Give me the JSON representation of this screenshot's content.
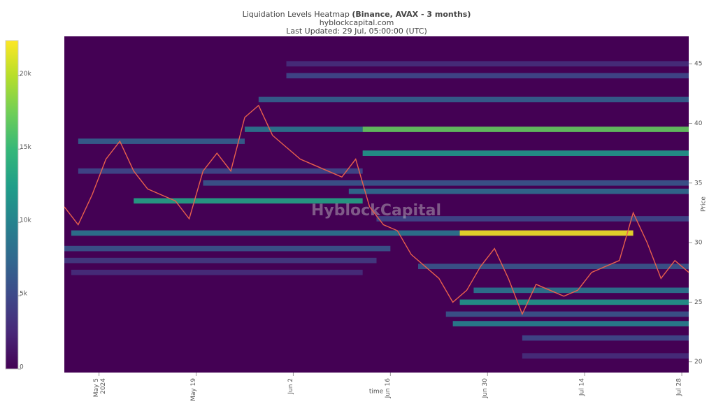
{
  "chart_data": {
    "type": "heatmap",
    "title": "Liquidation Levels Heatmap ",
    "title_bold": "(Binance, AVAX - 3 months)",
    "subtitle": "hyblockcapital.com",
    "updated": "Last Updated: 29 Jul, 05:00:00 (UTC)",
    "watermark": "HyblockCapital",
    "x_label": "time",
    "y_label": "Price",
    "colorscale": "viridis",
    "clim": [
      0,
      22400
    ],
    "cticks": [
      0,
      {
        "value": 5000,
        "label": "5k"
      },
      {
        "value": 10000,
        "label": "10k"
      },
      {
        "value": 15000,
        "label": "15k"
      },
      {
        "value": 20000,
        "label": "20k"
      }
    ],
    "xlim": [
      "2024-04-30",
      "2024-07-29"
    ],
    "xticks": [
      {
        "value": "2024-05-05",
        "label": "May 5"
      },
      {
        "value": "2024-05-19",
        "label": "May 19"
      },
      {
        "value": "2024-06-02",
        "label": "Jun 2"
      },
      {
        "value": "2024-06-16",
        "label": "Jun 16"
      },
      {
        "value": "2024-06-30",
        "label": "Jun 30"
      },
      {
        "value": "2024-07-14",
        "label": "Jul 14"
      },
      {
        "value": "2024-07-28",
        "label": "Jul 28"
      }
    ],
    "year_label": "2024",
    "ylim": [
      19.1,
      47.3
    ],
    "yticks": [
      20,
      25,
      30,
      35,
      40,
      45
    ],
    "line_color": "#e8604c",
    "x": [
      "2024-04-30",
      "2024-05-02",
      "2024-05-04",
      "2024-05-06",
      "2024-05-08",
      "2024-05-10",
      "2024-05-12",
      "2024-05-14",
      "2024-05-16",
      "2024-05-18",
      "2024-05-20",
      "2024-05-22",
      "2024-05-24",
      "2024-05-26",
      "2024-05-28",
      "2024-05-30",
      "2024-06-01",
      "2024-06-03",
      "2024-06-05",
      "2024-06-07",
      "2024-06-09",
      "2024-06-11",
      "2024-06-13",
      "2024-06-15",
      "2024-06-17",
      "2024-06-19",
      "2024-06-21",
      "2024-06-23",
      "2024-06-25",
      "2024-06-27",
      "2024-06-29",
      "2024-07-01",
      "2024-07-03",
      "2024-07-05",
      "2024-07-07",
      "2024-07-09",
      "2024-07-11",
      "2024-07-13",
      "2024-07-15",
      "2024-07-17",
      "2024-07-19",
      "2024-07-21",
      "2024-07-23",
      "2024-07-25",
      "2024-07-27",
      "2024-07-29"
    ],
    "values": [
      33,
      31.5,
      34,
      37,
      38.5,
      36,
      34.5,
      34,
      33.5,
      32,
      36,
      37.5,
      36,
      40.5,
      41.5,
      39,
      38,
      37,
      36.5,
      36,
      35.5,
      37,
      33,
      31.5,
      31,
      29,
      28,
      27,
      25,
      26,
      28,
      29.5,
      27,
      24,
      26.5,
      26,
      25.5,
      26,
      27.5,
      28,
      28.5,
      32.5,
      30,
      27,
      28.5,
      27.5
    ],
    "bands": [
      {
        "price": 39.5,
        "start": "2024-05-26",
        "end": "2024-06-12",
        "value": 9000
      },
      {
        "price": 39.5,
        "start": "2024-06-12",
        "end": "2024-07-29",
        "value": 17000
      },
      {
        "price": 30.8,
        "start": "2024-05-01",
        "end": "2024-06-26",
        "value": 9000
      },
      {
        "price": 30.8,
        "start": "2024-06-26",
        "end": "2024-07-21",
        "value": 22000
      },
      {
        "price": 33.5,
        "start": "2024-05-10",
        "end": "2024-06-12",
        "value": 13000
      },
      {
        "price": 37.5,
        "start": "2024-06-12",
        "end": "2024-07-29",
        "value": 12000
      },
      {
        "price": 42,
        "start": "2024-05-28",
        "end": "2024-07-29",
        "value": 7000
      },
      {
        "price": 44,
        "start": "2024-06-01",
        "end": "2024-07-29",
        "value": 5000
      },
      {
        "price": 45,
        "start": "2024-06-01",
        "end": "2024-07-29",
        "value": 3000
      },
      {
        "price": 35,
        "start": "2024-05-20",
        "end": "2024-07-29",
        "value": 6000
      },
      {
        "price": 34.3,
        "start": "2024-06-10",
        "end": "2024-07-29",
        "value": 8000
      },
      {
        "price": 29.5,
        "start": "2024-04-30",
        "end": "2024-06-16",
        "value": 6000
      },
      {
        "price": 28.5,
        "start": "2024-04-30",
        "end": "2024-06-14",
        "value": 4000
      },
      {
        "price": 27.5,
        "start": "2024-05-01",
        "end": "2024-06-12",
        "value": 3000
      },
      {
        "price": 26,
        "start": "2024-06-28",
        "end": "2024-07-29",
        "value": 9000
      },
      {
        "price": 25,
        "start": "2024-06-26",
        "end": "2024-07-29",
        "value": 12000
      },
      {
        "price": 23.2,
        "start": "2024-06-25",
        "end": "2024-07-29",
        "value": 10000
      },
      {
        "price": 22,
        "start": "2024-07-05",
        "end": "2024-07-29",
        "value": 5000
      },
      {
        "price": 20.5,
        "start": "2024-07-05",
        "end": "2024-07-29",
        "value": 3000
      },
      {
        "price": 38.5,
        "start": "2024-05-02",
        "end": "2024-05-26",
        "value": 7000
      },
      {
        "price": 36,
        "start": "2024-05-02",
        "end": "2024-06-12",
        "value": 5000
      },
      {
        "price": 32,
        "start": "2024-06-14",
        "end": "2024-07-29",
        "value": 5000
      },
      {
        "price": 28,
        "start": "2024-06-20",
        "end": "2024-07-29",
        "value": 6000
      },
      {
        "price": 24,
        "start": "2024-06-24",
        "end": "2024-07-29",
        "value": 6000
      }
    ]
  }
}
